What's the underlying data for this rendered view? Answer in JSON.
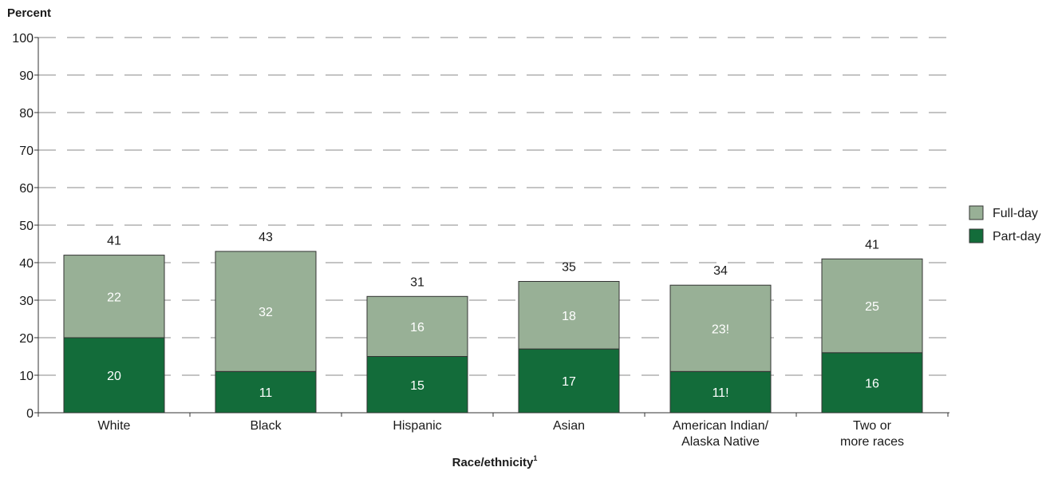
{
  "chart_data": {
    "type": "bar",
    "stacked": true,
    "ylabel": "Percent",
    "xlabel": "Race/ethnicity",
    "xlabel_footnote": "1",
    "ylim": [
      0,
      100
    ],
    "yticks": [
      0,
      10,
      20,
      30,
      40,
      50,
      60,
      70,
      80,
      90,
      100
    ],
    "grid": "dashed-horizontal",
    "legend_position": "right",
    "categories": [
      [
        "White"
      ],
      [
        "Black"
      ],
      [
        "Hispanic"
      ],
      [
        "Asian"
      ],
      [
        "American Indian/",
        "Alaska Native"
      ],
      [
        "Two or",
        "more races"
      ]
    ],
    "series": [
      {
        "name": "Part-day",
        "color": "#136c3a",
        "values": [
          20,
          11,
          15,
          17,
          11,
          16
        ],
        "labels": [
          "20",
          "11",
          "15",
          "17",
          "11!",
          "16"
        ]
      },
      {
        "name": "Full-day",
        "color": "#98b096",
        "values": [
          22,
          32,
          16,
          18,
          23,
          25
        ],
        "labels": [
          "22",
          "32",
          "16",
          "18",
          "23!",
          "25"
        ]
      }
    ],
    "totals": [
      41,
      43,
      31,
      35,
      34,
      41
    ],
    "legend_order": [
      "Full-day",
      "Part-day"
    ]
  }
}
